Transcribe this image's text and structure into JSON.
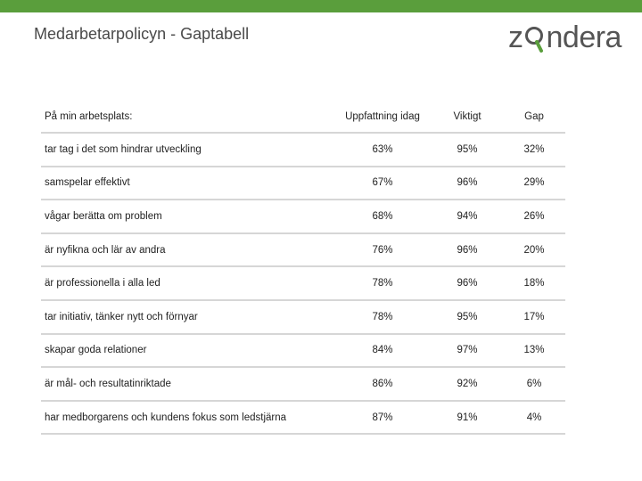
{
  "slide": {
    "title": "Medarbetarpolicyn - Gaptabell",
    "logo_text_left": "z",
    "logo_text_right": "ndera",
    "brand_color": "#5a9e3c"
  },
  "table": {
    "headers": [
      "På min arbetsplats:",
      "Uppfattning idag",
      "Viktigt",
      "Gap"
    ],
    "rows": [
      [
        "tar tag i det som hindrar utveckling",
        "63%",
        "95%",
        "32%"
      ],
      [
        "samspelar effektivt",
        "67%",
        "96%",
        "29%"
      ],
      [
        "vågar berätta om problem",
        "68%",
        "94%",
        "26%"
      ],
      [
        "är nyfikna och lär av andra",
        "76%",
        "96%",
        "20%"
      ],
      [
        "är professionella i alla led",
        "78%",
        "96%",
        "18%"
      ],
      [
        "tar initiativ, tänker nytt och förnyar",
        "78%",
        "95%",
        "17%"
      ],
      [
        "skapar goda relationer",
        "84%",
        "97%",
        "13%"
      ],
      [
        "är mål- och resultatinriktade",
        "86%",
        "92%",
        "6%"
      ],
      [
        "har medborgarens och kundens fokus som ledstjärna",
        "87%",
        "91%",
        "4%"
      ]
    ]
  }
}
